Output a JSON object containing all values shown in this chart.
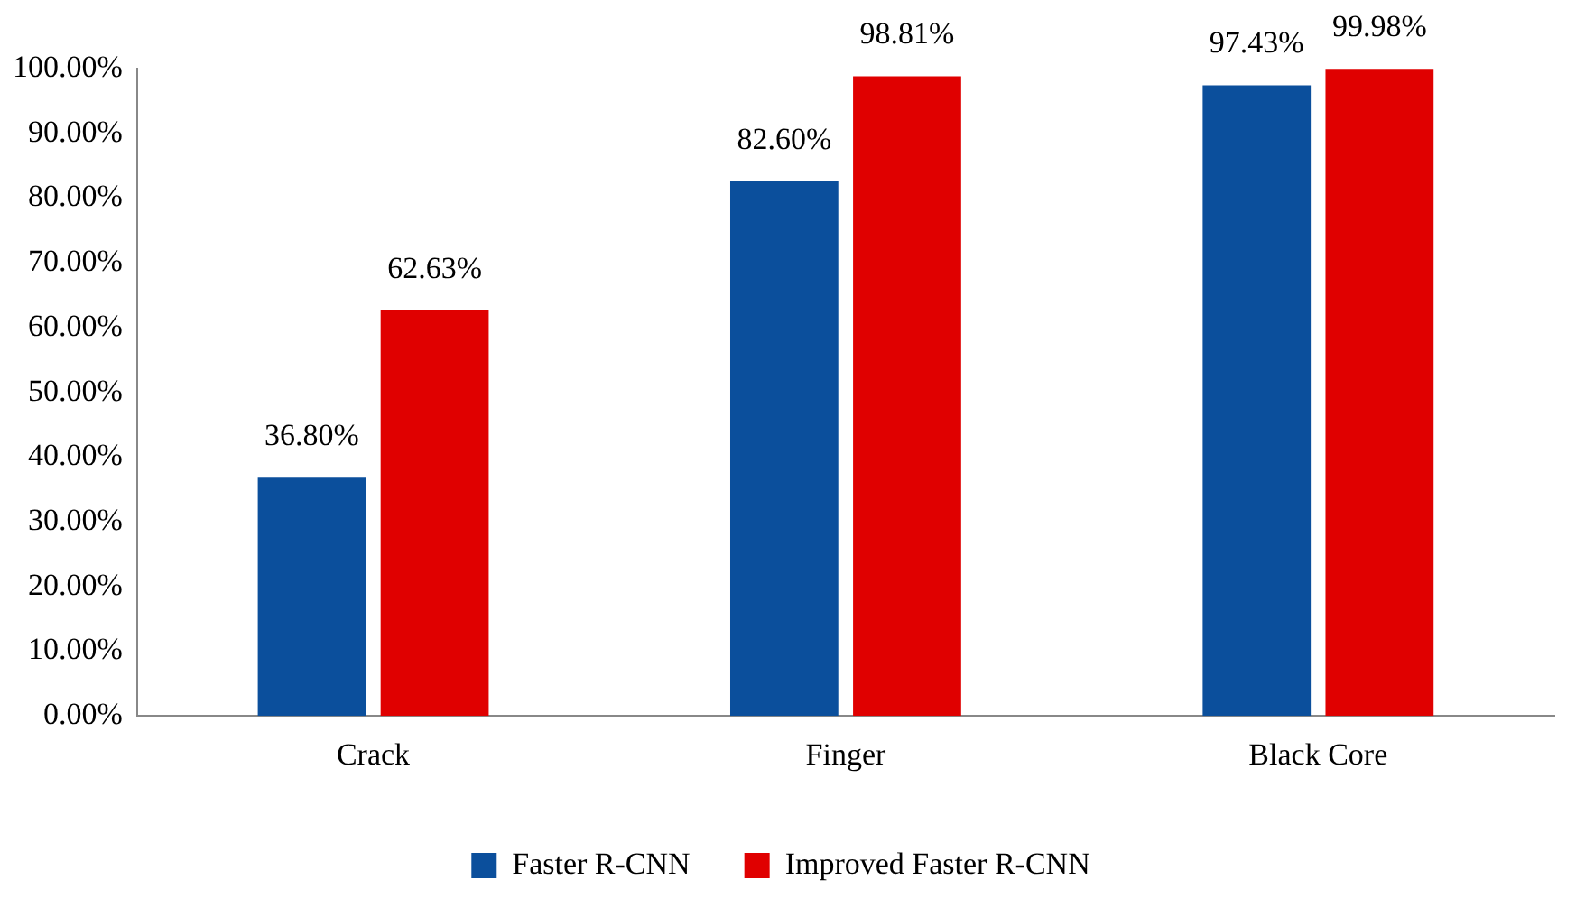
{
  "chart_data": {
    "type": "bar",
    "categories": [
      "Crack",
      "Finger",
      "Black Core"
    ],
    "series": [
      {
        "name": "Faster R-CNN",
        "color": "#0b4f9c",
        "values": [
          36.8,
          82.6,
          97.43
        ],
        "value_labels": [
          "36.80%",
          "82.60%",
          "97.43%"
        ]
      },
      {
        "name": "Improved Faster R-CNN",
        "color": "#e00000",
        "values": [
          62.63,
          98.81,
          99.98
        ],
        "value_labels": [
          "62.63%",
          "98.81%",
          "99.98%"
        ]
      }
    ],
    "ylim": [
      0,
      100
    ],
    "yticks": [
      {
        "value": 0,
        "label": "0.00%"
      },
      {
        "value": 10,
        "label": "10.00%"
      },
      {
        "value": 20,
        "label": "20.00%"
      },
      {
        "value": 30,
        "label": "30.00%"
      },
      {
        "value": 40,
        "label": "40.00%"
      },
      {
        "value": 50,
        "label": "50.00%"
      },
      {
        "value": 60,
        "label": "60.00%"
      },
      {
        "value": 70,
        "label": "70.00%"
      },
      {
        "value": 80,
        "label": "80.00%"
      },
      {
        "value": 90,
        "label": "90.00%"
      },
      {
        "value": 100,
        "label": "100.00%"
      }
    ],
    "legend": "bottom"
  }
}
